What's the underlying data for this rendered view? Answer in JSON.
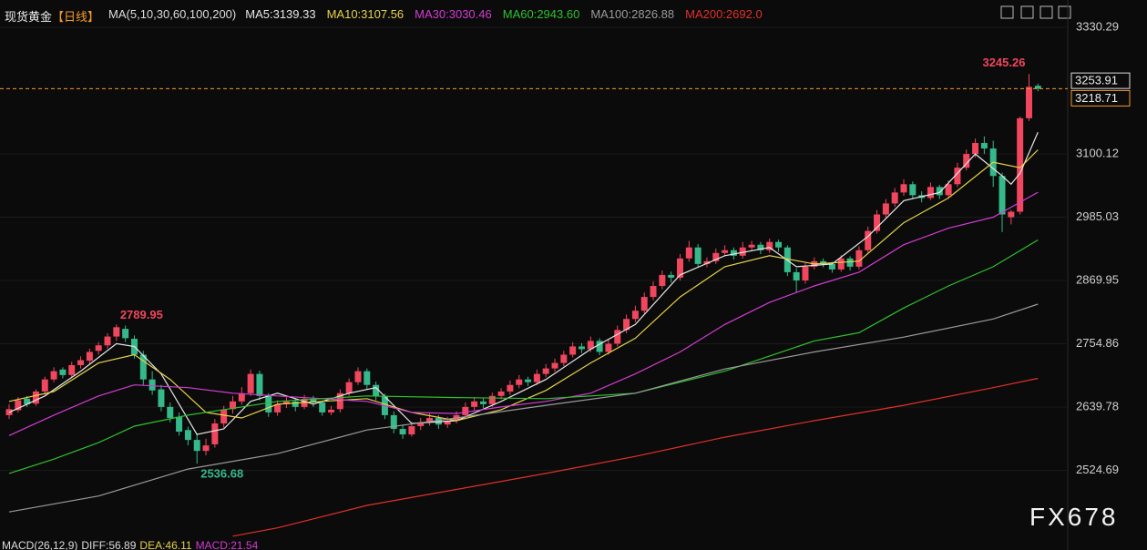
{
  "chart_data": {
    "type": "candlestick",
    "title": "现货黄金",
    "period": "【日线】",
    "indicator": "MA(5,10,30,60,100,200)",
    "ylim": [
      2403,
      3380
    ],
    "yticks": [
      2524.69,
      2639.78,
      2754.86,
      2869.95,
      2985.03,
      3100.12,
      3330.29
    ],
    "grid": true,
    "up_color": "#f0465e",
    "down_color": "#35b98a",
    "candles": [
      [
        2625,
        2645,
        2618,
        2636
      ],
      [
        2634,
        2658,
        2630,
        2652
      ],
      [
        2655,
        2660,
        2640,
        2645
      ],
      [
        2646,
        2672,
        2642,
        2668
      ],
      [
        2668,
        2695,
        2662,
        2690
      ],
      [
        2690,
        2712,
        2685,
        2705
      ],
      [
        2708,
        2712,
        2692,
        2698
      ],
      [
        2698,
        2722,
        2694,
        2716
      ],
      [
        2716,
        2732,
        2710,
        2725
      ],
      [
        2724,
        2746,
        2718,
        2740
      ],
      [
        2742,
        2758,
        2735,
        2752
      ],
      [
        2752,
        2774,
        2746,
        2768
      ],
      [
        2768,
        2789.95,
        2760,
        2785
      ],
      [
        2782,
        2788,
        2758,
        2765
      ],
      [
        2764,
        2770,
        2728,
        2735
      ],
      [
        2735,
        2742,
        2680,
        2690
      ],
      [
        2690,
        2705,
        2662,
        2670
      ],
      [
        2672,
        2680,
        2632,
        2640
      ],
      [
        2640,
        2648,
        2612,
        2620
      ],
      [
        2622,
        2630,
        2588,
        2595
      ],
      [
        2598,
        2604,
        2570,
        2580
      ],
      [
        2580,
        2592,
        2536.68,
        2560
      ],
      [
        2560,
        2582,
        2552,
        2570
      ],
      [
        2572,
        2618,
        2566,
        2610
      ],
      [
        2610,
        2642,
        2602,
        2635
      ],
      [
        2636,
        2660,
        2628,
        2650
      ],
      [
        2650,
        2676,
        2644,
        2665
      ],
      [
        2665,
        2708,
        2660,
        2700
      ],
      [
        2700,
        2706,
        2652,
        2660
      ],
      [
        2660,
        2665,
        2622,
        2630
      ],
      [
        2630,
        2652,
        2624,
        2645
      ],
      [
        2645,
        2658,
        2638,
        2650
      ],
      [
        2650,
        2656,
        2632,
        2640
      ],
      [
        2640,
        2662,
        2636,
        2655
      ],
      [
        2655,
        2660,
        2640,
        2648
      ],
      [
        2648,
        2652,
        2624,
        2630
      ],
      [
        2630,
        2642,
        2625,
        2635
      ],
      [
        2636,
        2672,
        2630,
        2665
      ],
      [
        2665,
        2692,
        2660,
        2685
      ],
      [
        2685,
        2712,
        2680,
        2705
      ],
      [
        2705,
        2710,
        2672,
        2680
      ],
      [
        2680,
        2686,
        2652,
        2660
      ],
      [
        2660,
        2664,
        2618,
        2625
      ],
      [
        2625,
        2632,
        2592,
        2600
      ],
      [
        2600,
        2608,
        2582,
        2590
      ],
      [
        2590,
        2612,
        2586,
        2605
      ],
      [
        2605,
        2620,
        2598,
        2612
      ],
      [
        2612,
        2628,
        2606,
        2620
      ],
      [
        2620,
        2625,
        2600,
        2608
      ],
      [
        2608,
        2622,
        2602,
        2615
      ],
      [
        2615,
        2632,
        2610,
        2625
      ],
      [
        2625,
        2648,
        2620,
        2640
      ],
      [
        2640,
        2658,
        2634,
        2650
      ],
      [
        2650,
        2656,
        2638,
        2645
      ],
      [
        2645,
        2666,
        2640,
        2660
      ],
      [
        2660,
        2674,
        2654,
        2668
      ],
      [
        2668,
        2688,
        2662,
        2680
      ],
      [
        2680,
        2698,
        2674,
        2690
      ],
      [
        2690,
        2695,
        2678,
        2685
      ],
      [
        2685,
        2708,
        2680,
        2700
      ],
      [
        2700,
        2718,
        2694,
        2710
      ],
      [
        2710,
        2728,
        2704,
        2720
      ],
      [
        2720,
        2742,
        2714,
        2735
      ],
      [
        2735,
        2758,
        2730,
        2750
      ],
      [
        2750,
        2756,
        2738,
        2745
      ],
      [
        2745,
        2768,
        2740,
        2760
      ],
      [
        2760,
        2765,
        2734,
        2740
      ],
      [
        2740,
        2762,
        2735,
        2755
      ],
      [
        2755,
        2788,
        2750,
        2780
      ],
      [
        2780,
        2808,
        2774,
        2800
      ],
      [
        2800,
        2824,
        2794,
        2815
      ],
      [
        2815,
        2848,
        2810,
        2840
      ],
      [
        2840,
        2868,
        2834,
        2860
      ],
      [
        2860,
        2888,
        2854,
        2880
      ],
      [
        2880,
        2886,
        2866,
        2875
      ],
      [
        2875,
        2918,
        2870,
        2910
      ],
      [
        2910,
        2942,
        2904,
        2930
      ],
      [
        2930,
        2936,
        2894,
        2900
      ],
      [
        2900,
        2912,
        2894,
        2905
      ],
      [
        2905,
        2928,
        2900,
        2920
      ],
      [
        2920,
        2934,
        2914,
        2925
      ],
      [
        2925,
        2930,
        2908,
        2915
      ],
      [
        2915,
        2940,
        2910,
        2930
      ],
      [
        2930,
        2942,
        2924,
        2935
      ],
      [
        2935,
        2940,
        2918,
        2925
      ],
      [
        2925,
        2946,
        2920,
        2940
      ],
      [
        2940,
        2944,
        2922,
        2930
      ],
      [
        2930,
        2934,
        2878,
        2885
      ],
      [
        2885,
        2892,
        2848,
        2870
      ],
      [
        2870,
        2902,
        2864,
        2895
      ],
      [
        2895,
        2912,
        2890,
        2905
      ],
      [
        2905,
        2910,
        2894,
        2900
      ],
      [
        2900,
        2904,
        2884,
        2890
      ],
      [
        2890,
        2916,
        2886,
        2910
      ],
      [
        2910,
        2914,
        2888,
        2895
      ],
      [
        2895,
        2932,
        2890,
        2925
      ],
      [
        2925,
        2968,
        2920,
        2960
      ],
      [
        2960,
        2998,
        2955,
        2990
      ],
      [
        2990,
        3018,
        2984,
        3010
      ],
      [
        3010,
        3038,
        3004,
        3030
      ],
      [
        3030,
        3054,
        3024,
        3045
      ],
      [
        3045,
        3050,
        3018,
        3025
      ],
      [
        3025,
        3032,
        3012,
        3020
      ],
      [
        3020,
        3048,
        3016,
        3040
      ],
      [
        3040,
        3044,
        3018,
        3025
      ],
      [
        3025,
        3052,
        3020,
        3045
      ],
      [
        3045,
        3084,
        3040,
        3075
      ],
      [
        3075,
        3108,
        3070,
        3100
      ],
      [
        3100,
        3128,
        3094,
        3120
      ],
      [
        3120,
        3132,
        3100,
        3110
      ],
      [
        3110,
        3124,
        3040,
        3060
      ],
      [
        3060,
        3066,
        2958,
        2990
      ],
      [
        2985,
        2998,
        2972,
        2995
      ],
      [
        2995,
        3168,
        2990,
        3165
      ],
      [
        3165,
        3245.26,
        3160,
        3222
      ],
      [
        3224,
        3228,
        3214,
        3218.71
      ]
    ],
    "series": [
      {
        "name": "MA5:3139.33",
        "color": "#e6e6e6",
        "x": [
          0,
          4,
          8,
          12,
          14,
          17,
          21,
          24,
          27,
          30,
          34,
          38,
          41,
          45,
          50,
          55,
          60,
          65,
          70,
          75,
          80,
          85,
          88,
          92,
          96,
          100,
          104,
          108,
          111,
          112,
          113,
          115
        ],
        "values": [
          2630,
          2660,
          2705,
          2755,
          2750,
          2700,
          2590,
          2600,
          2650,
          2665,
          2645,
          2665,
          2675,
          2610,
          2615,
          2650,
          2690,
          2745,
          2790,
          2880,
          2915,
          2930,
          2895,
          2900,
          2950,
          3015,
          3030,
          3100,
          3060,
          3045,
          3065,
          3139.33
        ]
      },
      {
        "name": "MA10:3107.56",
        "color": "#e6d24a",
        "x": [
          0,
          5,
          10,
          14,
          18,
          22,
          26,
          30,
          35,
          40,
          45,
          50,
          55,
          60,
          65,
          70,
          75,
          80,
          85,
          90,
          95,
          100,
          105,
          110,
          113,
          115
        ],
        "values": [
          2650,
          2668,
          2720,
          2735,
          2690,
          2630,
          2620,
          2645,
          2650,
          2655,
          2630,
          2615,
          2635,
          2670,
          2720,
          2765,
          2840,
          2895,
          2915,
          2900,
          2905,
          2975,
          3020,
          3085,
          3075,
          3107.56
        ]
      },
      {
        "name": "MA30:3030.46",
        "color": "#d23cd2",
        "x": [
          0,
          5,
          10,
          14,
          20,
          25,
          30,
          35,
          40,
          45,
          50,
          55,
          60,
          65,
          70,
          75,
          80,
          85,
          90,
          95,
          100,
          105,
          110,
          115
        ],
        "values": [
          2588,
          2625,
          2660,
          2680,
          2675,
          2665,
          2660,
          2655,
          2650,
          2630,
          2628,
          2640,
          2650,
          2665,
          2700,
          2740,
          2790,
          2830,
          2860,
          2885,
          2935,
          2965,
          2985,
          3030.46
        ]
      },
      {
        "name": "MA60:2943.60",
        "color": "#2fc02f",
        "x": [
          0,
          5,
          10,
          14,
          20,
          30,
          40,
          50,
          60,
          70,
          80,
          90,
          95,
          100,
          105,
          110,
          115
        ],
        "values": [
          2519,
          2545,
          2575,
          2605,
          2625,
          2650,
          2660,
          2657,
          2655,
          2665,
          2705,
          2760,
          2775,
          2820,
          2860,
          2895,
          2943.6
        ]
      },
      {
        "name": "MA100:2826.88",
        "color": "#9a9a9a",
        "x": [
          0,
          10,
          20,
          30,
          40,
          50,
          60,
          70,
          80,
          90,
          100,
          110,
          115
        ],
        "values": [
          2449,
          2478,
          2527,
          2555,
          2598,
          2620,
          2643,
          2665,
          2709,
          2740,
          2767,
          2800,
          2826.88
        ]
      },
      {
        "name": "MA200:2692.0",
        "color": "#e0302c",
        "x": [
          25,
          30,
          40,
          50,
          60,
          70,
          80,
          90,
          100,
          110,
          115
        ],
        "values": [
          2405,
          2420,
          2461,
          2490,
          2519,
          2550,
          2585,
          2615,
          2643,
          2675,
          2692
        ]
      }
    ],
    "price_marker": 3253.91,
    "macd_legend": [
      {
        "text": "MACD(26,12,9)",
        "color": "#dddddd"
      },
      {
        "text": "DIFF:56.89",
        "color": "#dddddd"
      },
      {
        "text": "DEA:46.11",
        "color": "#e6d24a"
      },
      {
        "text": "MACD:21.54",
        "color": "#d23cd2"
      }
    ],
    "watermark": "FX678"
  }
}
